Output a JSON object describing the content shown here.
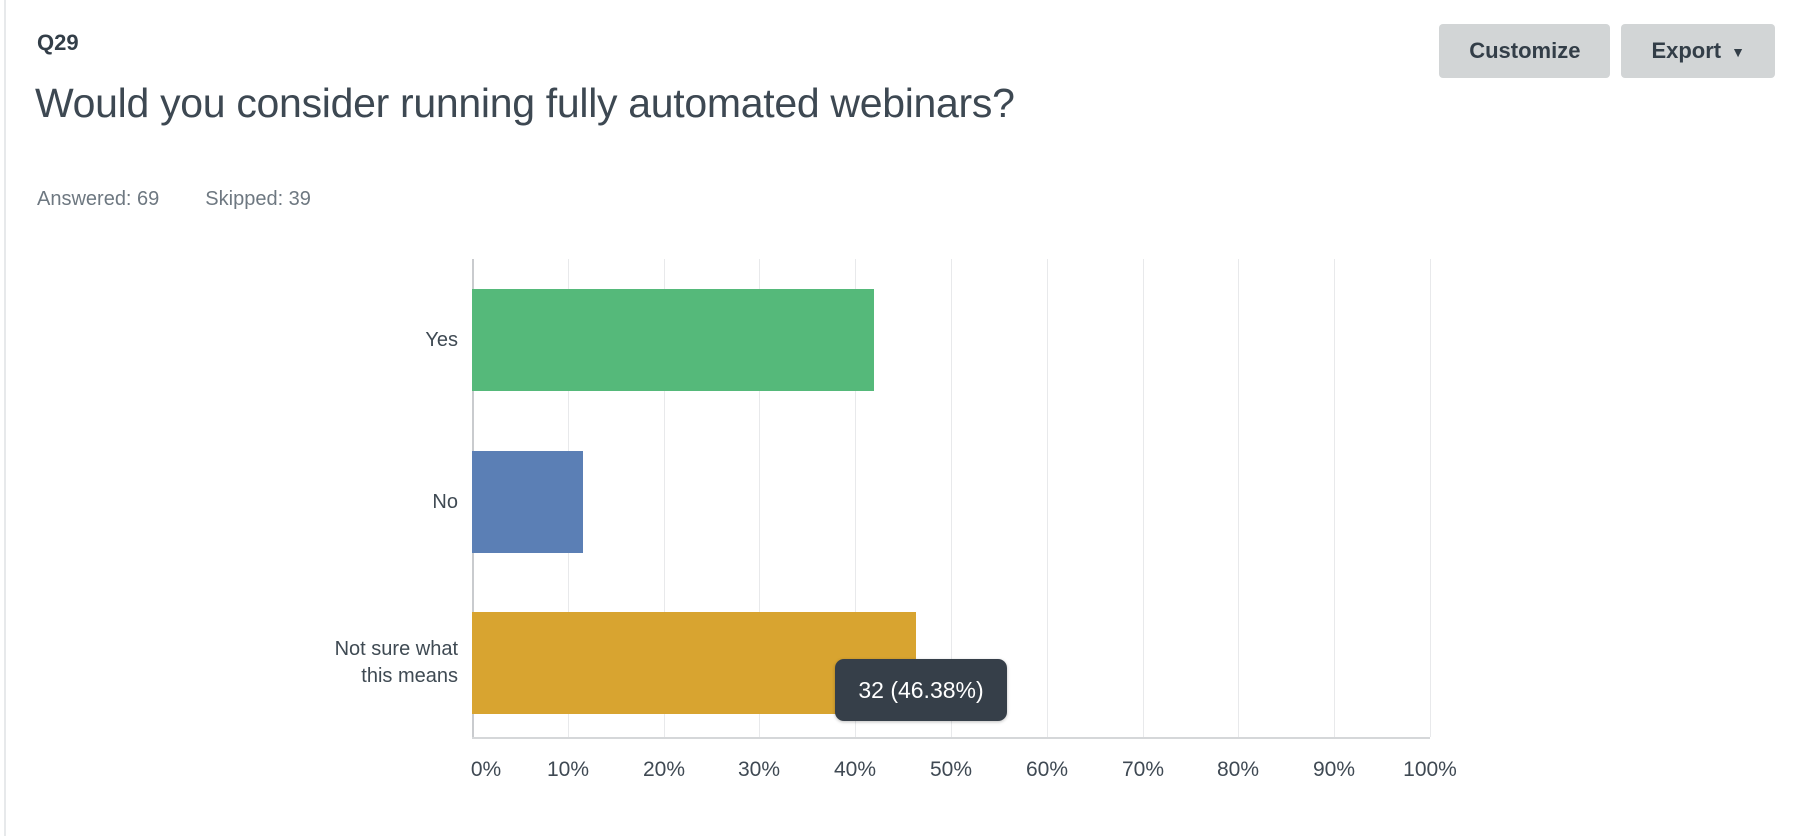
{
  "header": {
    "question_number": "Q29",
    "title": "Would you consider running fully automated webinars?",
    "answered": "Answered: 69",
    "skipped": "Skipped: 39"
  },
  "toolbar": {
    "customize_label": "Customize",
    "export_label": "Export"
  },
  "chart_data": {
    "type": "bar",
    "orientation": "horizontal",
    "categories": [
      "Yes",
      "No",
      "Not sure what this means"
    ],
    "values_percent": [
      42.0,
      11.6,
      46.38
    ],
    "bar_colors": [
      "#55b97a",
      "#5b7fb5",
      "#d8a430"
    ],
    "axis": {
      "min": 0,
      "max": 100,
      "tick_step": 10,
      "tick_labels": [
        "0%",
        "10%",
        "20%",
        "30%",
        "40%",
        "50%",
        "60%",
        "70%",
        "80%",
        "90%",
        "100%"
      ]
    },
    "grid": true,
    "legend": false,
    "tooltip": {
      "text": "32 (46.38%)",
      "count": 32,
      "percent": 46.38,
      "target_category": "Not sure what this means",
      "bg_color": "#363f49"
    }
  },
  "colors": {
    "grid_line": "#e8e9eb",
    "axis_line": "#c9cbce",
    "button_bg": "#d2d5d6",
    "heading_text": "#333e48",
    "muted_text": "#6e7881"
  }
}
